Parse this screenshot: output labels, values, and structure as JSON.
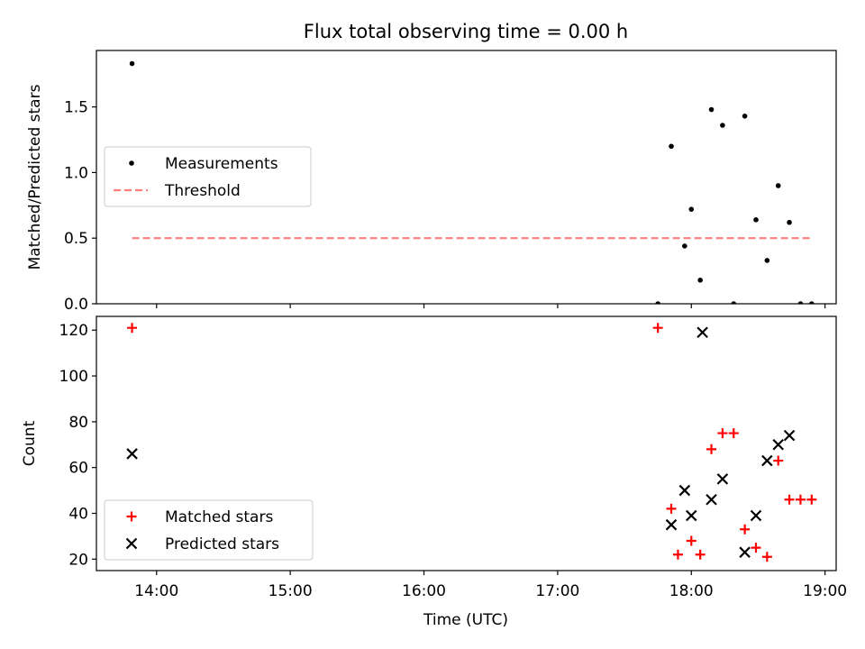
{
  "figure": {
    "title": "Flux total observing time = 0.00 h",
    "xlabel": "Time (UTC)"
  },
  "chart_data": [
    {
      "type": "scatter",
      "name": "ratio-panel",
      "ylabel": "Matched/Predicted stars",
      "xlim": [
        "13:33",
        "19:05"
      ],
      "ylim": [
        0,
        1.93
      ],
      "y_ticks": [
        0.0,
        0.5,
        1.0,
        1.5
      ],
      "y_tick_labels": [
        "0.0",
        "0.5",
        "1.0",
        "1.5"
      ],
      "legend_position": "center-left",
      "series": [
        {
          "name": "Measurements",
          "marker": "dot",
          "color": "#000000",
          "points": [
            [
              "13:49",
              1.83
            ],
            [
              "17:45",
              0.0
            ],
            [
              "17:51",
              1.2
            ],
            [
              "17:57",
              0.44
            ],
            [
              "18:00",
              0.72
            ],
            [
              "18:04",
              0.18
            ],
            [
              "18:09",
              1.48
            ],
            [
              "18:14",
              1.36
            ],
            [
              "18:19",
              0.0
            ],
            [
              "18:24",
              1.43
            ],
            [
              "18:29",
              0.64
            ],
            [
              "18:34",
              0.33
            ],
            [
              "18:39",
              0.9
            ],
            [
              "18:44",
              0.62
            ],
            [
              "18:49",
              0.0
            ],
            [
              "18:54",
              0.0
            ]
          ]
        },
        {
          "name": "Threshold",
          "marker": "dashed-line",
          "color": "#ff7f7f",
          "points": [
            [
              "13:49",
              0.5
            ],
            [
              "18:54",
              0.5
            ]
          ]
        }
      ]
    },
    {
      "type": "scatter",
      "name": "count-panel",
      "ylabel": "Count",
      "xlim": [
        "13:33",
        "19:05"
      ],
      "ylim": [
        15,
        126
      ],
      "y_ticks": [
        20,
        40,
        60,
        80,
        100,
        120
      ],
      "y_tick_labels": [
        "20",
        "40",
        "60",
        "80",
        "100",
        "120"
      ],
      "x_ticks": [
        "14:00",
        "15:00",
        "16:00",
        "17:00",
        "18:00",
        "19:00"
      ],
      "x_tick_labels": [
        "14:00",
        "15:00",
        "16:00",
        "17:00",
        "18:00",
        "19:00"
      ],
      "legend_position": "lower-left",
      "series": [
        {
          "name": "Matched stars",
          "marker": "plus",
          "color": "#ff0000",
          "points": [
            [
              "13:49",
              121
            ],
            [
              "17:45",
              121
            ],
            [
              "17:51",
              42
            ],
            [
              "17:54",
              22
            ],
            [
              "18:00",
              28
            ],
            [
              "18:04",
              22
            ],
            [
              "18:09",
              68
            ],
            [
              "18:14",
              75
            ],
            [
              "18:19",
              75
            ],
            [
              "18:24",
              33
            ],
            [
              "18:29",
              25
            ],
            [
              "18:34",
              21
            ],
            [
              "18:39",
              63
            ],
            [
              "18:44",
              46
            ],
            [
              "18:49",
              46
            ],
            [
              "18:54",
              46
            ]
          ]
        },
        {
          "name": "Predicted stars",
          "marker": "x",
          "color": "#000000",
          "points": [
            [
              "13:49",
              66
            ],
            [
              "17:51",
              35
            ],
            [
              "17:57",
              50
            ],
            [
              "18:00",
              39
            ],
            [
              "18:05",
              119
            ],
            [
              "18:09",
              46
            ],
            [
              "18:14",
              55
            ],
            [
              "18:24",
              23
            ],
            [
              "18:29",
              39
            ],
            [
              "18:34",
              63
            ],
            [
              "18:39",
              70
            ],
            [
              "18:44",
              74
            ]
          ]
        }
      ]
    }
  ]
}
